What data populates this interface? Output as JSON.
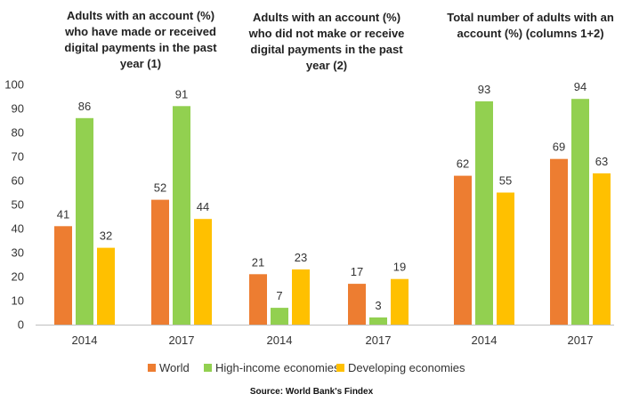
{
  "chart_data": {
    "type": "bar",
    "ylim": [
      0,
      100
    ],
    "yticks": [
      0,
      10,
      20,
      30,
      40,
      50,
      60,
      70,
      80,
      90,
      100
    ],
    "grid": false,
    "groups": [
      {
        "title": [
          "Adults with an account (%)",
          "who have made or received",
          "digital payments in the past",
          "year (1)"
        ],
        "categories": [
          "2014",
          "2017"
        ]
      },
      {
        "title": [
          "Adults with an account (%)",
          "who did not make or receive",
          "digital payments in the past",
          "year (2)"
        ],
        "categories": [
          "2014",
          "2017"
        ]
      },
      {
        "title": [
          "Total number of adults with an",
          "account (%)     (columns 1+2)"
        ],
        "categories": [
          "2014",
          "2017"
        ]
      }
    ],
    "categories": [
      "2014",
      "2017",
      "2014",
      "2017",
      "2014",
      "2017"
    ],
    "series": [
      {
        "name": "World",
        "color": "#ED7D31",
        "values": [
          41,
          52,
          21,
          17,
          62,
          69
        ]
      },
      {
        "name": "High-income economies",
        "color": "#92D050",
        "values": [
          86,
          91,
          7,
          3,
          93,
          94
        ]
      },
      {
        "name": "Developing economies",
        "color": "#FFC000",
        "values": [
          32,
          44,
          23,
          19,
          55,
          63
        ]
      }
    ],
    "legend_position": "bottom",
    "source": "Source: World Bank's Findex"
  }
}
